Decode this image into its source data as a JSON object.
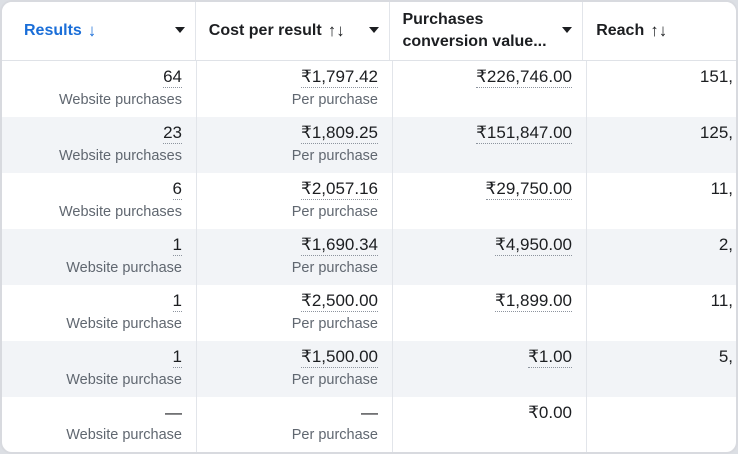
{
  "columns": {
    "results": {
      "label": "Results",
      "sort_icon": "↓"
    },
    "cost_per_result": {
      "label": "Cost per result",
      "sort_icon": "↑↓"
    },
    "purchases_value": {
      "label_line1": "Purchases",
      "label_line2": "conversion value..."
    },
    "reach": {
      "label": "Reach",
      "sort_icon": "↑↓"
    }
  },
  "rows": [
    {
      "results": "64",
      "results_sub": "Website purchases",
      "cost": "₹1,797.42",
      "cost_sub": "Per purchase",
      "value": "₹226,746.00",
      "reach": "151,"
    },
    {
      "results": "23",
      "results_sub": "Website purchases",
      "cost": "₹1,809.25",
      "cost_sub": "Per purchase",
      "value": "₹151,847.00",
      "reach": "125,"
    },
    {
      "results": "6",
      "results_sub": "Website purchases",
      "cost": "₹2,057.16",
      "cost_sub": "Per purchase",
      "value": "₹29,750.00",
      "reach": "11,"
    },
    {
      "results": "1",
      "results_sub": "Website purchase",
      "cost": "₹1,690.34",
      "cost_sub": "Per purchase",
      "value": "₹4,950.00",
      "reach": "2,"
    },
    {
      "results": "1",
      "results_sub": "Website purchase",
      "cost": "₹2,500.00",
      "cost_sub": "Per purchase",
      "value": "₹1,899.00",
      "reach": "11,"
    },
    {
      "results": "1",
      "results_sub": "Website purchase",
      "cost": "₹1,500.00",
      "cost_sub": "Per purchase",
      "value": "₹1.00",
      "reach": "5,"
    },
    {
      "results": "—",
      "results_sub": "Website purchase",
      "cost": "—",
      "cost_sub": "Per purchase",
      "value": "₹0.00",
      "reach": ""
    }
  ],
  "colors": {
    "accent": "#1a6ed8",
    "alt_row": "#f2f4f7"
  }
}
